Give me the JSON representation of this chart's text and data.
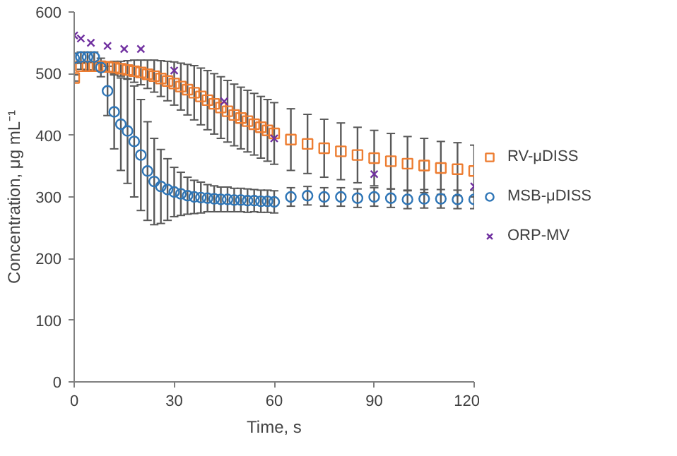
{
  "chart_data": {
    "type": "scatter",
    "xlabel": "Time, s",
    "ylabel": "Concentration, μg mL⁻¹",
    "xlim": [
      0,
      120
    ],
    "ylim": [
      0,
      600
    ],
    "xticks": [
      0,
      30,
      60,
      90,
      120
    ],
    "yticks": [
      0,
      100,
      200,
      300,
      400,
      500,
      600
    ],
    "grid": false,
    "legend": "right",
    "series": [
      {
        "name": "RV-μDISS",
        "color": "#ed7d31",
        "marker": "square",
        "x": [
          0,
          2,
          4,
          6,
          8,
          10,
          12,
          14,
          16,
          18,
          20,
          22,
          24,
          26,
          28,
          30,
          32,
          34,
          36,
          38,
          40,
          42,
          44,
          46,
          48,
          50,
          52,
          54,
          56,
          58,
          60,
          65,
          70,
          75,
          80,
          85,
          90,
          95,
          100,
          105,
          110,
          115,
          120
        ],
        "values": [
          493,
          512,
          512,
          512,
          512,
          511,
          510,
          508,
          506,
          504,
          502,
          499,
          496,
          492,
          488,
          484,
          479,
          474,
          469,
          463,
          457,
          451,
          445,
          439,
          433,
          428,
          423,
          418,
          413,
          408,
          403,
          393,
          386,
          379,
          374,
          368,
          363,
          358,
          354,
          351,
          347,
          345,
          342
        ],
        "errors": [
          5,
          5,
          6,
          7,
          8,
          8,
          10,
          12,
          15,
          18,
          20,
          23,
          26,
          29,
          32,
          35,
          38,
          41,
          44,
          46,
          48,
          49,
          50,
          50,
          50,
          50,
          50,
          50,
          50,
          50,
          50,
          50,
          48,
          47,
          46,
          45,
          45,
          45,
          44,
          44,
          43,
          43,
          42
        ]
      },
      {
        "name": "MSB-μDISS",
        "color": "#2e75b6",
        "marker": "circle",
        "x": [
          0,
          2,
          4,
          6,
          8,
          10,
          12,
          14,
          16,
          18,
          20,
          22,
          24,
          26,
          28,
          30,
          32,
          34,
          36,
          38,
          40,
          42,
          44,
          46,
          48,
          50,
          52,
          54,
          56,
          58,
          60,
          65,
          70,
          75,
          80,
          85,
          90,
          95,
          100,
          105,
          110,
          115,
          120
        ],
        "values": [
          525,
          527,
          527,
          527,
          510,
          472,
          438,
          418,
          407,
          390,
          368,
          342,
          325,
          317,
          312,
          308,
          305,
          302,
          300,
          299,
          298,
          297,
          296,
          296,
          295,
          295,
          294,
          294,
          293,
          293,
          292,
          300,
          302,
          300,
          300,
          298,
          300,
          298,
          296,
          297,
          297,
          296,
          296
        ],
        "errors": [
          8,
          8,
          8,
          8,
          15,
          40,
          60,
          75,
          85,
          90,
          90,
          80,
          70,
          60,
          50,
          40,
          35,
          30,
          27,
          25,
          22,
          21,
          20,
          20,
          19,
          19,
          19,
          18,
          18,
          18,
          18,
          15,
          15,
          15,
          15,
          15,
          15,
          15,
          15,
          15,
          15,
          15,
          15
        ]
      },
      {
        "name": "ORP-MV",
        "color": "#7030a0",
        "marker": "cross",
        "x": [
          0,
          2,
          5,
          10,
          15,
          20,
          30,
          45,
          60,
          90,
          120
        ],
        "values": [
          562,
          557,
          550,
          545,
          540,
          540,
          505,
          455,
          395,
          337,
          317
        ]
      }
    ]
  }
}
